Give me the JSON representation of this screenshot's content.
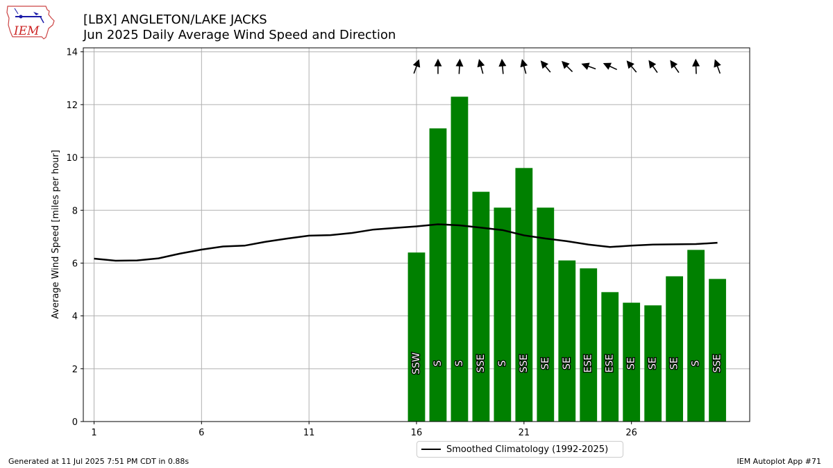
{
  "header": {
    "title_line1": "[LBX] ANGLETON/LAKE JACKS",
    "title_line2": "Jun 2025 Daily Average Wind Speed and Direction"
  },
  "logo": {
    "text": "IEM",
    "icon": "iem-iowa-map-logo"
  },
  "footer": {
    "left": "Generated at 11 Jul 2025 7:51 PM CDT in 0.88s",
    "right": "IEM Autoplot App #71"
  },
  "legend": {
    "label": "Smoothed Climatology (1992-2025)"
  },
  "colors": {
    "bar": "#008000",
    "line": "#000000",
    "grid": "#b0b0b0"
  },
  "chart_data": {
    "type": "bar",
    "ylabel": "Average Wind Speed [miles per hour]",
    "xlim": [
      0.5,
      31.5
    ],
    "ylim": [
      0,
      14.15
    ],
    "xticks": [
      1,
      6,
      11,
      16,
      21,
      26
    ],
    "yticks": [
      0,
      2,
      4,
      6,
      8,
      10,
      12,
      14
    ],
    "grid": true,
    "bars": [
      {
        "day": 16,
        "speed": 6.4,
        "dir": "SSW"
      },
      {
        "day": 17,
        "speed": 11.1,
        "dir": "S"
      },
      {
        "day": 18,
        "speed": 12.3,
        "dir": "S"
      },
      {
        "day": 19,
        "speed": 8.7,
        "dir": "SSE"
      },
      {
        "day": 20,
        "speed": 8.1,
        "dir": "S"
      },
      {
        "day": 21,
        "speed": 9.6,
        "dir": "SSE"
      },
      {
        "day": 22,
        "speed": 8.1,
        "dir": "SE"
      },
      {
        "day": 23,
        "speed": 6.1,
        "dir": "SE"
      },
      {
        "day": 24,
        "speed": 5.8,
        "dir": "ESE"
      },
      {
        "day": 25,
        "speed": 4.9,
        "dir": "ESE"
      },
      {
        "day": 26,
        "speed": 4.5,
        "dir": "SE"
      },
      {
        "day": 27,
        "speed": 4.4,
        "dir": "SE"
      },
      {
        "day": 28,
        "speed": 5.5,
        "dir": "SE"
      },
      {
        "day": 29,
        "speed": 6.5,
        "dir": "S"
      },
      {
        "day": 30,
        "speed": 5.4,
        "dir": "SSE"
      }
    ],
    "arrows": [
      {
        "day": 16,
        "angle_deg": 200
      },
      {
        "day": 17,
        "angle_deg": 180
      },
      {
        "day": 18,
        "angle_deg": 183
      },
      {
        "day": 19,
        "angle_deg": 165
      },
      {
        "day": 20,
        "angle_deg": 175
      },
      {
        "day": 21,
        "angle_deg": 165
      },
      {
        "day": 22,
        "angle_deg": 140
      },
      {
        "day": 23,
        "angle_deg": 135
      },
      {
        "day": 24,
        "angle_deg": 110
      },
      {
        "day": 25,
        "angle_deg": 115
      },
      {
        "day": 26,
        "angle_deg": 140
      },
      {
        "day": 27,
        "angle_deg": 145
      },
      {
        "day": 28,
        "angle_deg": 145
      },
      {
        "day": 29,
        "angle_deg": 178
      },
      {
        "day": 30,
        "angle_deg": 160
      }
    ],
    "climatology": {
      "name": "Smoothed Climatology (1992-2025)",
      "x": [
        1,
        2,
        3,
        4,
        5,
        6,
        7,
        8,
        9,
        10,
        11,
        12,
        13,
        14,
        15,
        16,
        17,
        18,
        19,
        20,
        21,
        22,
        23,
        24,
        25,
        26,
        27,
        28,
        29,
        30
      ],
      "y": [
        6.17,
        6.09,
        6.1,
        6.18,
        6.36,
        6.51,
        6.63,
        6.66,
        6.81,
        6.93,
        7.04,
        7.06,
        7.14,
        7.27,
        7.33,
        7.39,
        7.47,
        7.43,
        7.34,
        7.25,
        7.05,
        6.93,
        6.83,
        6.7,
        6.61,
        6.66,
        6.7,
        6.71,
        6.72,
        6.77
      ]
    }
  }
}
